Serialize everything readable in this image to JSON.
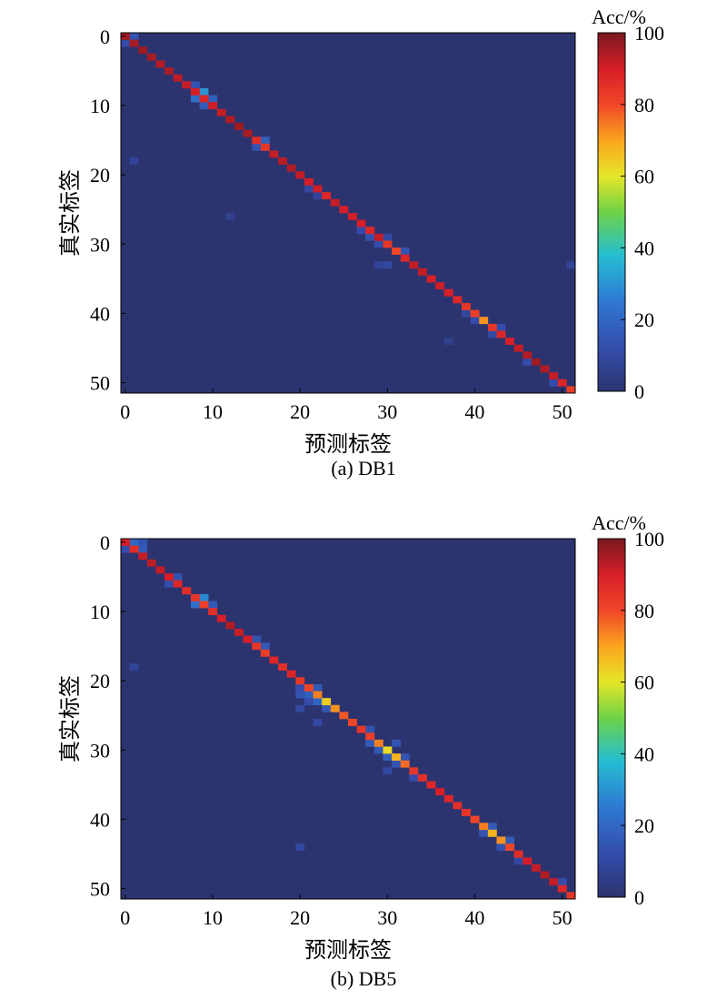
{
  "chart_data": [
    {
      "type": "heatmap",
      "caption": "(a) DB1",
      "xlabel": "预测标签",
      "ylabel": "真实标签",
      "n": 52,
      "x_ticks": [
        0,
        10,
        20,
        30,
        40,
        50
      ],
      "y_ticks": [
        0,
        10,
        20,
        30,
        40,
        50
      ],
      "colorbar": {
        "label": "Acc/%",
        "range": [
          0,
          100
        ],
        "ticks": [
          0,
          20,
          40,
          60,
          80,
          100
        ]
      },
      "diagonal_values": [
        96,
        95,
        96,
        95,
        94,
        95,
        93,
        92,
        90,
        88,
        91,
        92,
        94,
        96,
        95,
        86,
        84,
        92,
        93,
        94,
        92,
        90,
        91,
        88,
        92,
        90,
        91,
        90,
        88,
        92,
        84,
        80,
        88,
        92,
        92,
        90,
        91,
        90,
        88,
        84,
        82,
        72,
        84,
        88,
        90,
        92,
        94,
        96,
        94,
        92,
        88,
        82
      ],
      "off_diagonal": [
        {
          "row": 0,
          "col": 1,
          "value": 14
        },
        {
          "row": 1,
          "col": 0,
          "value": 12
        },
        {
          "row": 7,
          "col": 8,
          "value": 14
        },
        {
          "row": 8,
          "col": 9,
          "value": 30
        },
        {
          "row": 9,
          "col": 8,
          "value": 22
        },
        {
          "row": 9,
          "col": 10,
          "value": 18
        },
        {
          "row": 10,
          "col": 9,
          "value": 16
        },
        {
          "row": 15,
          "col": 16,
          "value": 18
        },
        {
          "row": 16,
          "col": 15,
          "value": 14
        },
        {
          "row": 18,
          "col": 1,
          "value": 8
        },
        {
          "row": 22,
          "col": 21,
          "value": 10
        },
        {
          "row": 23,
          "col": 22,
          "value": 8
        },
        {
          "row": 26,
          "col": 12,
          "value": 6
        },
        {
          "row": 28,
          "col": 27,
          "value": 12
        },
        {
          "row": 29,
          "col": 28,
          "value": 14
        },
        {
          "row": 29,
          "col": 30,
          "value": 10
        },
        {
          "row": 30,
          "col": 29,
          "value": 12
        },
        {
          "row": 31,
          "col": 32,
          "value": 14
        },
        {
          "row": 33,
          "col": 30,
          "value": 10
        },
        {
          "row": 33,
          "col": 29,
          "value": 8
        },
        {
          "row": 40,
          "col": 39,
          "value": 10
        },
        {
          "row": 41,
          "col": 40,
          "value": 12
        },
        {
          "row": 42,
          "col": 43,
          "value": 12
        },
        {
          "row": 43,
          "col": 42,
          "value": 10
        },
        {
          "row": 47,
          "col": 46,
          "value": 12
        },
        {
          "row": 50,
          "col": 49,
          "value": 12
        },
        {
          "row": 33,
          "col": 51,
          "value": 8
        },
        {
          "row": 44,
          "col": 37,
          "value": 6
        }
      ]
    },
    {
      "type": "heatmap",
      "caption": "(b) DB5",
      "xlabel": "预测标签",
      "ylabel": "真实标签",
      "n": 52,
      "x_ticks": [
        0,
        10,
        20,
        30,
        40,
        50
      ],
      "y_ticks": [
        0,
        10,
        20,
        30,
        40,
        50
      ],
      "colorbar": {
        "label": "Acc/%",
        "range": [
          0,
          100
        ],
        "ticks": [
          0,
          20,
          40,
          60,
          80,
          100
        ]
      },
      "diagonal_values": [
        90,
        86,
        92,
        93,
        92,
        90,
        88,
        86,
        84,
        82,
        86,
        90,
        94,
        92,
        90,
        84,
        82,
        88,
        86,
        88,
        84,
        80,
        74,
        64,
        72,
        78,
        80,
        84,
        82,
        74,
        62,
        68,
        76,
        84,
        86,
        88,
        90,
        88,
        86,
        84,
        80,
        74,
        68,
        72,
        80,
        86,
        90,
        92,
        94,
        92,
        88,
        84
      ],
      "off_diagonal": [
        {
          "row": 0,
          "col": 1,
          "value": 20
        },
        {
          "row": 0,
          "col": 2,
          "value": 14
        },
        {
          "row": 1,
          "col": 2,
          "value": 16
        },
        {
          "row": 1,
          "col": 0,
          "value": 12
        },
        {
          "row": 5,
          "col": 6,
          "value": 14
        },
        {
          "row": 6,
          "col": 5,
          "value": 12
        },
        {
          "row": 8,
          "col": 9,
          "value": 28
        },
        {
          "row": 9,
          "col": 8,
          "value": 22
        },
        {
          "row": 9,
          "col": 10,
          "value": 16
        },
        {
          "row": 14,
          "col": 15,
          "value": 14
        },
        {
          "row": 15,
          "col": 16,
          "value": 16
        },
        {
          "row": 18,
          "col": 1,
          "value": 8
        },
        {
          "row": 21,
          "col": 22,
          "value": 16
        },
        {
          "row": 21,
          "col": 20,
          "value": 12
        },
        {
          "row": 22,
          "col": 20,
          "value": 14
        },
        {
          "row": 22,
          "col": 21,
          "value": 18
        },
        {
          "row": 23,
          "col": 22,
          "value": 20
        },
        {
          "row": 23,
          "col": 21,
          "value": 12
        },
        {
          "row": 24,
          "col": 20,
          "value": 10
        },
        {
          "row": 24,
          "col": 23,
          "value": 16
        },
        {
          "row": 26,
          "col": 22,
          "value": 10
        },
        {
          "row": 27,
          "col": 28,
          "value": 14
        },
        {
          "row": 29,
          "col": 28,
          "value": 16
        },
        {
          "row": 29,
          "col": 31,
          "value": 14
        },
        {
          "row": 30,
          "col": 29,
          "value": 16
        },
        {
          "row": 31,
          "col": 30,
          "value": 18
        },
        {
          "row": 31,
          "col": 32,
          "value": 14
        },
        {
          "row": 32,
          "col": 31,
          "value": 14
        },
        {
          "row": 33,
          "col": 30,
          "value": 10
        },
        {
          "row": 34,
          "col": 33,
          "value": 12
        },
        {
          "row": 41,
          "col": 42,
          "value": 16
        },
        {
          "row": 42,
          "col": 41,
          "value": 14
        },
        {
          "row": 43,
          "col": 44,
          "value": 16
        },
        {
          "row": 44,
          "col": 43,
          "value": 14
        },
        {
          "row": 44,
          "col": 20,
          "value": 10
        },
        {
          "row": 46,
          "col": 45,
          "value": 10
        },
        {
          "row": 49,
          "col": 50,
          "value": 12
        }
      ]
    }
  ]
}
